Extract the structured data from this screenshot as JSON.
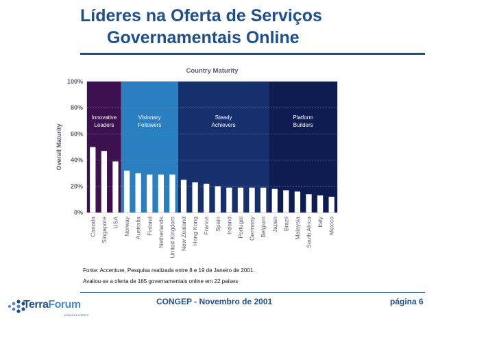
{
  "slide": {
    "title_line1": "Líderes na Oferta de Serviços",
    "title_line2": "Governamentais Online",
    "source_line1": "Fonte: Accenture, Pesquisa realizada entre 8 e 19 de Janeiro de 2001.",
    "source_line2": "Avaliou-se a oferta de 165 governamentais online em 22 países",
    "footer_center": "CONGEP - Novembro de 2001",
    "footer_page": "página 6",
    "logo_terra": "Terra",
    "logo_forum": "Forum",
    "logo_sub": "CONSULTORES"
  },
  "chart_data": {
    "type": "bar",
    "title": "Country Maturity",
    "ylabel": "Overall Maturity",
    "xlabel": "",
    "ylim": [
      0,
      100
    ],
    "yticks": [
      "0%",
      "20%",
      "40%",
      "60%",
      "80%",
      "100%"
    ],
    "categories": [
      "Canada",
      "Singapore",
      "USA",
      "Norway",
      "Australia",
      "Finland",
      "Netherlands",
      "United Kingdom",
      "New Zealand",
      "Hong Kong",
      "France",
      "Spain",
      "Ireland",
      "Portugal",
      "Germany",
      "Belgium",
      "Japan",
      "Brazil",
      "Malaysia",
      "South Africa",
      "Italy",
      "Mexico"
    ],
    "values": [
      50,
      47,
      39,
      32,
      30,
      29,
      29,
      29,
      25,
      23,
      22,
      20,
      19,
      19,
      19,
      19,
      18,
      17,
      16,
      14,
      13,
      12
    ],
    "groups": [
      {
        "label_line1": "Innovative",
        "label_line2": "Leaders",
        "start": 0,
        "end": 2,
        "color": "#3d1150"
      },
      {
        "label_line1": "Visionary",
        "label_line2": "Followers",
        "start": 3,
        "end": 7,
        "color": "#2a7fc0"
      },
      {
        "label_line1": "Steady",
        "label_line2": "Achievers",
        "start": 8,
        "end": 15,
        "color": "#16306e"
      },
      {
        "label_line1": "Platform",
        "label_line2": "Builders",
        "start": 16,
        "end": 21,
        "color": "#0e1c52"
      }
    ],
    "colors": {
      "bar": "#ffffff",
      "frame": "#a9a9b6",
      "grid": "#8c8fa6",
      "axis_text": "#5a5a6e"
    }
  }
}
